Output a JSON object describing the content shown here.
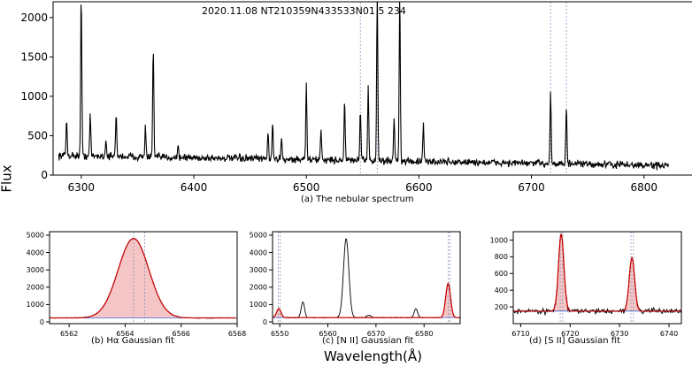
{
  "figure": {
    "y_axis_label": "Flux",
    "x_axis_label": "Wavelength(Å)",
    "captions": {
      "a": "(a)   The nebular spectrum",
      "b": "(b)  Hα  Gaussian fit",
      "c": "(c)  [N II]  Gaussian fit",
      "d": "(d)  [S II]  Gaussian fit"
    },
    "header_text": "2020.11.08    NT210359N433533N01    5    234"
  },
  "colors": {
    "spectrum": "#000000",
    "fit": "#cc0000",
    "fill": "#f4b6b6",
    "marker_line": "#8899bb",
    "baseline": "#4466cc",
    "continuum": "#33aa33"
  },
  "chart_data": [
    {
      "id": "a",
      "type": "line",
      "xlim": [
        6275,
        6845
      ],
      "ylim": [
        0,
        2200
      ],
      "xticks": [
        6300,
        6400,
        6500,
        6600,
        6700,
        6800
      ],
      "yticks": [
        0,
        500,
        1000,
        1500,
        2000
      ],
      "continuum": {
        "x_start": 6280,
        "x_end": 6822,
        "y_start": 250,
        "y_end": 120
      },
      "peaks": [
        {
          "x": 6287,
          "y": 700
        },
        {
          "x": 6300,
          "y": 2300
        },
        {
          "x": 6308,
          "y": 770
        },
        {
          "x": 6322,
          "y": 450
        },
        {
          "x": 6331,
          "y": 780
        },
        {
          "x": 6357,
          "y": 620
        },
        {
          "x": 6364,
          "y": 1620
        },
        {
          "x": 6386,
          "y": 380
        },
        {
          "x": 6466,
          "y": 550
        },
        {
          "x": 6470,
          "y": 650
        },
        {
          "x": 6478,
          "y": 500
        },
        {
          "x": 6500,
          "y": 1160
        },
        {
          "x": 6513,
          "y": 600
        },
        {
          "x": 6534,
          "y": 960
        },
        {
          "x": 6548,
          "y": 800
        },
        {
          "x": 6555,
          "y": 1150
        },
        {
          "x": 6563,
          "y": 2300
        },
        {
          "x": 6578,
          "y": 780
        },
        {
          "x": 6583,
          "y": 2300
        },
        {
          "x": 6604,
          "y": 630
        },
        {
          "x": 6717,
          "y": 1080
        },
        {
          "x": 6731,
          "y": 870
        }
      ],
      "markers": [
        6548,
        6563,
        6717,
        6731
      ]
    },
    {
      "id": "b",
      "type": "line",
      "xlim": [
        6561.3,
        6568.0
      ],
      "ylim": [
        -100,
        5200
      ],
      "xticks": [
        6562,
        6564,
        6566,
        6568
      ],
      "yticks": [
        0,
        1000,
        2000,
        3000,
        4000,
        5000
      ],
      "continuum": 230,
      "lines": [
        {
          "center": 6564.3,
          "amplitude": 4580,
          "sigma": 0.55
        }
      ],
      "markers": [
        6564.3,
        6564.7
      ]
    },
    {
      "id": "c",
      "type": "line",
      "xlim": [
        6548.5,
        6587.5
      ],
      "ylim": [
        -100,
        5200
      ],
      "xticks": [
        6550,
        6560,
        6570,
        6580
      ],
      "yticks": [
        0,
        1000,
        2000,
        3000,
        4000,
        5000
      ],
      "continuum": 250,
      "lines": [
        {
          "center": 6549.8,
          "amplitude": 520,
          "sigma": 0.45,
          "fit": true
        },
        {
          "center": 6554.8,
          "amplitude": 900,
          "sigma": 0.35,
          "fit": false
        },
        {
          "center": 6563.8,
          "amplitude": 4570,
          "sigma": 0.55,
          "fit": false
        },
        {
          "center": 6568.5,
          "amplitude": 150,
          "sigma": 0.4,
          "fit": false
        },
        {
          "center": 6578.3,
          "amplitude": 520,
          "sigma": 0.35,
          "fit": false
        },
        {
          "center": 6585.0,
          "amplitude": 1970,
          "sigma": 0.5,
          "fit": true
        }
      ],
      "markers": [
        6549.7,
        6550.1,
        6585.0,
        6585.4
      ]
    },
    {
      "id": "d",
      "type": "line",
      "xlim": [
        6708.5,
        6742.5
      ],
      "ylim": [
        0,
        1100
      ],
      "xticks": [
        6710,
        6720,
        6730,
        6740
      ],
      "yticks": [
        200,
        400,
        600,
        800,
        1000
      ],
      "continuum": 150,
      "lines": [
        {
          "center": 6718.2,
          "amplitude": 920,
          "sigma": 0.55
        },
        {
          "center": 6732.5,
          "amplitude": 640,
          "sigma": 0.55
        }
      ],
      "markers": [
        6718.0,
        6718.5,
        6732.3,
        6732.8
      ]
    }
  ]
}
